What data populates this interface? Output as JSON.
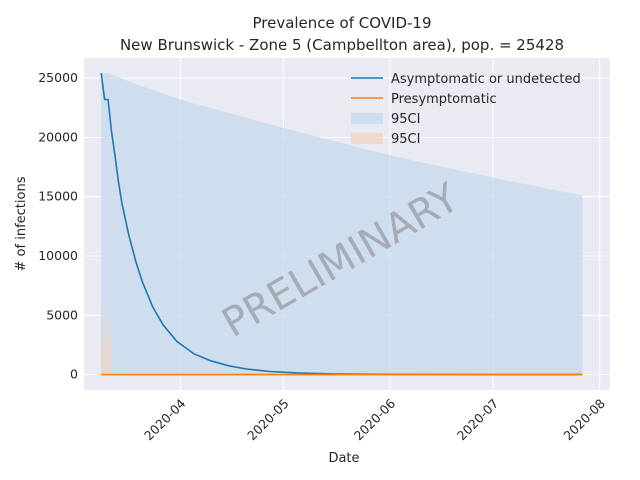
{
  "chart_data": {
    "type": "line",
    "title": "Prevalence of COVID-19",
    "subtitle": "New Brunswick - Zone 5 (Campbellton area), pop. = 25428",
    "xlabel": "Date",
    "ylabel": "# of infections",
    "x_type": "date",
    "xlim": [
      "2020-03-04",
      "2020-08-04"
    ],
    "ylim": [
      -1300,
      26700
    ],
    "x_ticks": [
      "2020-04",
      "2020-05",
      "2020-06",
      "2020-07",
      "2020-08"
    ],
    "x_tick_dates": [
      "2020-04-01",
      "2020-05-01",
      "2020-06-01",
      "2020-07-01",
      "2020-08-01"
    ],
    "y_ticks": [
      0,
      5000,
      10000,
      15000,
      20000,
      25000
    ],
    "y_tick_labels": [
      "0",
      "5000",
      "10000",
      "15000",
      "20000",
      "25000"
    ],
    "grid": true,
    "legend_position": "upper-right",
    "watermark": "PRELIMINARY",
    "colors": {
      "plot_bg": "#eaeaf2",
      "grid": "#ffffff",
      "asymptomatic": "#1f77b4",
      "presymptomatic": "#ff7f0e",
      "ci_blue": "#c6d9ec",
      "ci_orange": "#f3d3bf",
      "watermark": "#9a9aa0"
    },
    "series": [
      {
        "name": "Asymptomatic or undetected",
        "color": "#1f77b4",
        "points": [
          [
            "2020-03-09",
            25428
          ],
          [
            "2020-03-10",
            23200
          ],
          [
            "2020-03-11",
            23200
          ],
          [
            "2020-03-12",
            20500
          ],
          [
            "2020-03-13",
            18500
          ],
          [
            "2020-03-14",
            16300
          ],
          [
            "2020-03-15",
            14500
          ],
          [
            "2020-03-17",
            11800
          ],
          [
            "2020-03-19",
            9600
          ],
          [
            "2020-03-21",
            7800
          ],
          [
            "2020-03-24",
            5700
          ],
          [
            "2020-03-27",
            4200
          ],
          [
            "2020-03-31",
            2800
          ],
          [
            "2020-04-05",
            1750
          ],
          [
            "2020-04-10",
            1150
          ],
          [
            "2020-04-15",
            750
          ],
          [
            "2020-04-20",
            480
          ],
          [
            "2020-04-27",
            260
          ],
          [
            "2020-05-05",
            140
          ],
          [
            "2020-05-15",
            60
          ],
          [
            "2020-05-31",
            20
          ],
          [
            "2020-06-30",
            3
          ],
          [
            "2020-07-27",
            0
          ]
        ]
      },
      {
        "name": "Presymptomatic",
        "color": "#ff7f0e",
        "points": [
          [
            "2020-03-09",
            0
          ],
          [
            "2020-07-27",
            0
          ]
        ]
      }
    ],
    "bands": [
      {
        "name": "95CI",
        "color": "#c6d9ec",
        "upper": [
          [
            "2020-03-09",
            25428
          ],
          [
            "2020-03-11",
            25428
          ],
          [
            "2020-03-21",
            24300
          ],
          [
            "2020-04-01",
            23200
          ],
          [
            "2020-05-01",
            20800
          ],
          [
            "2020-06-01",
            18500
          ],
          [
            "2020-07-01",
            16600
          ],
          [
            "2020-07-27",
            15100
          ]
        ],
        "lower": [
          [
            "2020-03-09",
            0
          ],
          [
            "2020-07-27",
            0
          ]
        ]
      },
      {
        "name": "95CI",
        "color": "#f3d3bf",
        "upper": [
          [
            "2020-03-09",
            17000
          ],
          [
            "2020-03-09",
            6000
          ],
          [
            "2020-03-10",
            400
          ],
          [
            "2020-03-11",
            6000
          ],
          [
            "2020-03-12",
            300
          ],
          [
            "2020-03-13",
            0
          ]
        ],
        "lower": [
          [
            "2020-03-09",
            0
          ],
          [
            "2020-03-13",
            0
          ]
        ]
      }
    ]
  }
}
